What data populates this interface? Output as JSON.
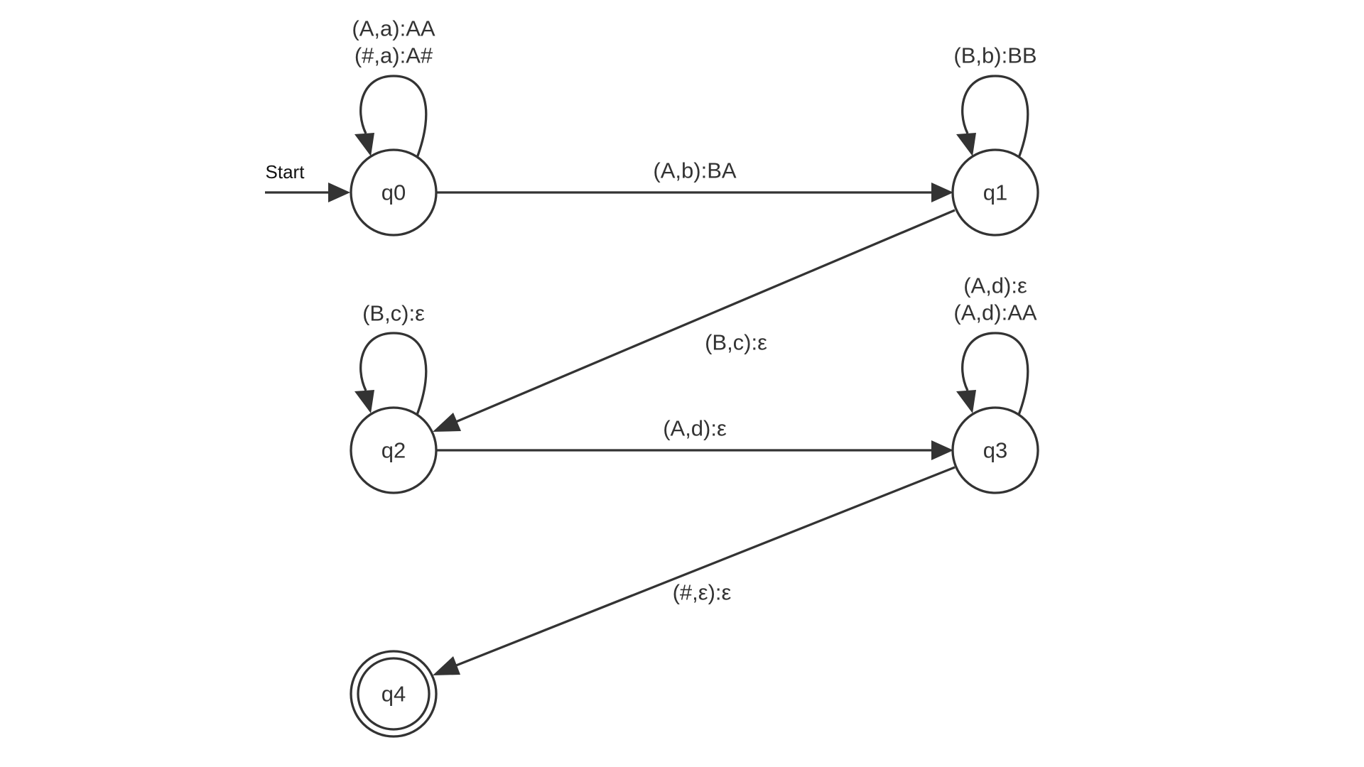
{
  "diagram": {
    "start_label": "Start",
    "states": {
      "q0": {
        "label": "q0",
        "accepting": false
      },
      "q1": {
        "label": "q1",
        "accepting": false
      },
      "q2": {
        "label": "q2",
        "accepting": false
      },
      "q3": {
        "label": "q3",
        "accepting": false
      },
      "q4": {
        "label": "q4",
        "accepting": true
      }
    },
    "transitions": {
      "q0_self": {
        "from": "q0",
        "to": "q0",
        "labels": [
          "(A,a):AA",
          "(#,a):A#"
        ]
      },
      "q0_q1": {
        "from": "q0",
        "to": "q1",
        "labels": [
          "(A,b):BA"
        ]
      },
      "q1_self": {
        "from": "q1",
        "to": "q1",
        "labels": [
          "(B,b):BB"
        ]
      },
      "q1_q2": {
        "from": "q1",
        "to": "q2",
        "labels": [
          "(B,c):ε"
        ]
      },
      "q2_self": {
        "from": "q2",
        "to": "q2",
        "labels": [
          "(B,c):ε"
        ]
      },
      "q2_q3": {
        "from": "q2",
        "to": "q3",
        "labels": [
          "(A,d):ε"
        ]
      },
      "q3_self": {
        "from": "q3",
        "to": "q3",
        "labels": [
          "(A,d):ε",
          "(A,d):AA"
        ]
      },
      "q3_q4": {
        "from": "q3",
        "to": "q4",
        "labels": [
          "(#,ε):ε"
        ]
      }
    },
    "colors": {
      "stroke": "#333333",
      "background": "#ffffff"
    }
  }
}
